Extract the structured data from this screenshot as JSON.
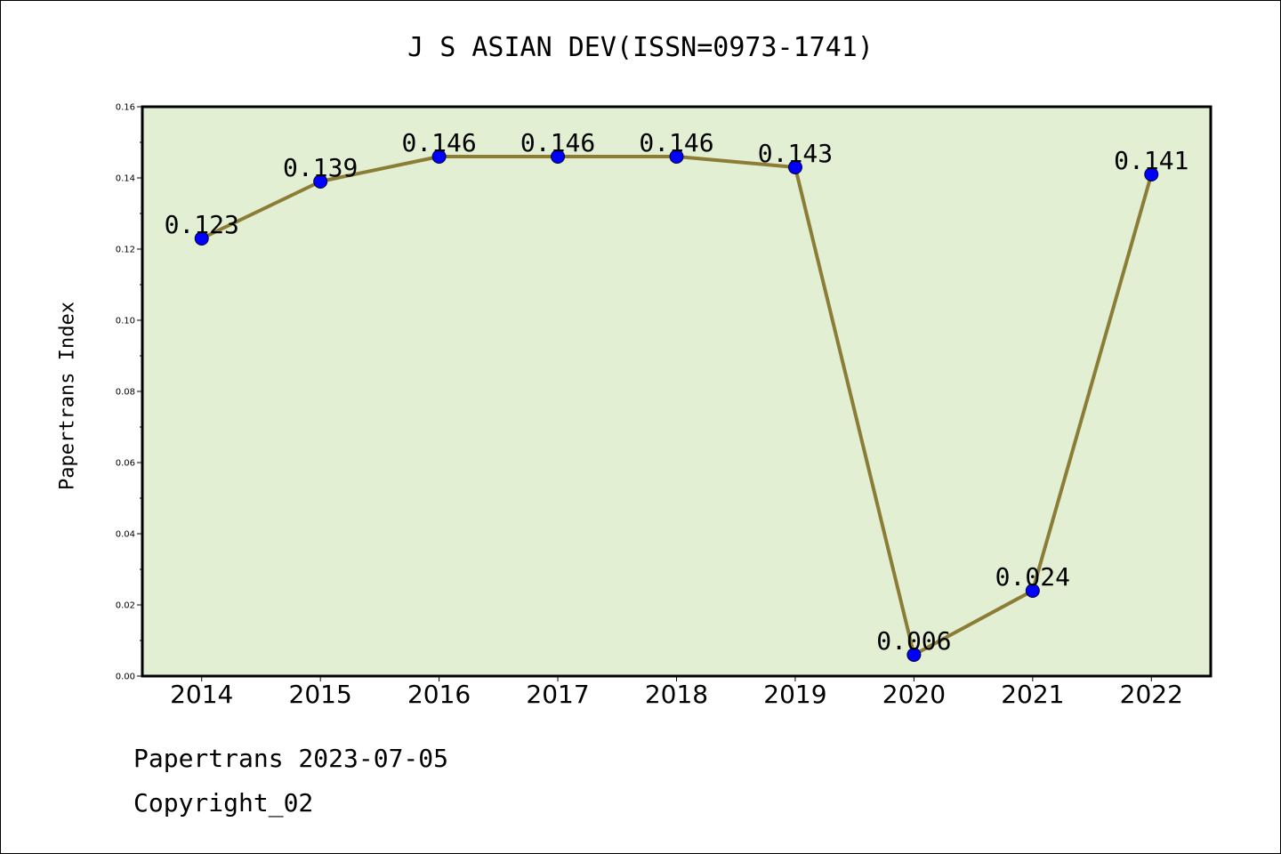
{
  "chart_data": {
    "type": "line",
    "title": "J S ASIAN DEV(ISSN=0973-1741)",
    "xlabel": "",
    "ylabel": "Papertrans Index",
    "categories": [
      "2014",
      "2015",
      "2016",
      "2017",
      "2018",
      "2019",
      "2020",
      "2021",
      "2022"
    ],
    "series": [
      {
        "values": [
          0.123,
          0.139,
          0.146,
          0.146,
          0.146,
          0.143,
          0.006,
          0.024,
          0.141
        ],
        "data_labels": [
          "0.123",
          "0.139",
          "0.146",
          "0.146",
          "0.146",
          "0.143",
          "0.006",
          "0.024",
          "0.141"
        ]
      }
    ],
    "ylim": [
      0,
      0.16
    ],
    "yticks": [
      "0.00",
      "0.02",
      "0.04",
      "0.06",
      "0.08",
      "0.10",
      "0.12",
      "0.14",
      "0.16"
    ],
    "grid": false,
    "legend": "none",
    "colors": {
      "line": "#8b7d35",
      "marker": "#0000ff",
      "plot_bg": "#e2efd3"
    }
  },
  "footer": {
    "date_line": "Papertrans 2023-07-05",
    "copyright": "Copyright_02"
  }
}
